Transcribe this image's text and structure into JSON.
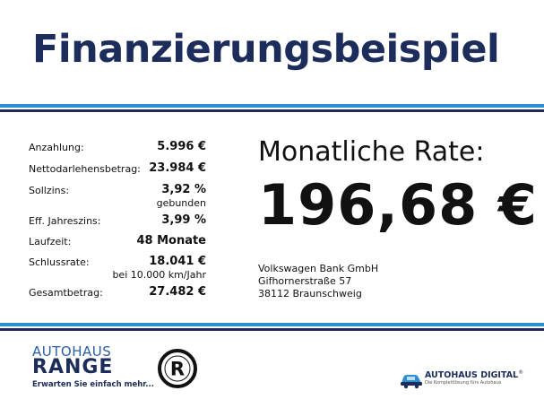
{
  "title": "Finanzierungsbeispiel",
  "terms": [
    {
      "label": "Anzahlung:",
      "value": "5.996 €",
      "note": ""
    },
    {
      "label": "Nettodarlehensbetrag:",
      "value": "23.984 €",
      "note": ""
    },
    {
      "label": "Sollzins:",
      "value": "3,92 %",
      "note": "gebunden"
    },
    {
      "label": "Eff. Jahreszins:",
      "value": "3,99 %",
      "note": ""
    },
    {
      "label": "Laufzeit:",
      "value": "48 Monate",
      "note": ""
    },
    {
      "label": "Schlussrate:",
      "value": "18.041 €",
      "note": "bei 10.000 km/Jahr"
    },
    {
      "label": "Gesamtbetrag:",
      "value": "27.482 €",
      "note": ""
    }
  ],
  "rate": {
    "label": "Monatliche Rate:",
    "value": "196,68 €"
  },
  "lender": {
    "name": "Volkswagen Bank GmbH",
    "street": "Gifhornerstraße 57",
    "city": "38112 Braunschweig"
  },
  "logos": {
    "range_top": "AUTOHAUS",
    "range_name": "RANGE",
    "range_slogan": "Erwarten Sie einfach mehr...",
    "circle_letter": "R",
    "digital_name": "AUTOHAUS DIGITAL",
    "digital_reg": "®",
    "digital_slogan": "Die Komplettlösung fürs Autohaus"
  },
  "colors": {
    "brand_navy": "#1c2d5c",
    "stripe_blue": "#2e8fd0"
  }
}
